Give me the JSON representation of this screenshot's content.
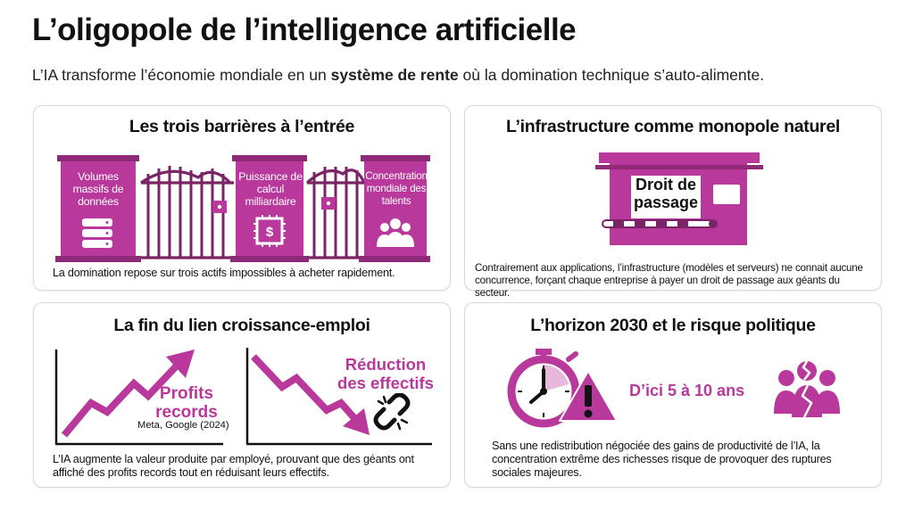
{
  "header": {
    "title": "L’oligopole de l’intelligence artificielle",
    "subtitle_pre": "L’IA transforme l’économie mondiale en un ",
    "subtitle_bold": "système de rente",
    "subtitle_post": " où la domination technique s’auto-alimente."
  },
  "cards": {
    "barriers": {
      "title": "Les trois barrières à l’entrée",
      "pillar1": "Volumes massifs de données",
      "pillar2": "Puissance de calcul milliardaire",
      "pillar3": "Concentration mondiale des talents",
      "caption": "La domination repose sur trois actifs impossibles à acheter rapidement."
    },
    "infra": {
      "title": "L’infrastructure comme monopole naturel",
      "toll_label": "Droit de passage",
      "caption": "Contrairement aux applications, l’infrastructure (modèles et serveurs) ne connait aucune concurrence, forçant chaque entreprise à payer un droit de passage aux géants du secteur."
    },
    "growth": {
      "title": "La fin du lien croissance-emploi",
      "profits_label": "Profits records",
      "profits_source": "Meta, Google (2024)",
      "reduction_label": "Réduction des effectifs",
      "caption": "L’IA augmente la valeur produite par employé, prouvant que des géants ont affiché des profits records tout en réduisant leurs effectifs."
    },
    "horizon": {
      "title": "L’horizon 2030 et le risque politique",
      "timeframe": "D’ici 5 à 10 ans",
      "caption": "Sans une redistribution négociée des gains de productivité de l’IA, la concentration extrême des richesses risque de provoquer des ruptures sociales majeures."
    }
  },
  "colors": {
    "accent": "#b8399b",
    "accent_dark": "#8e2a77",
    "text": "#111111",
    "border": "#d9d9d9"
  },
  "icons": [
    "database-icon",
    "chip-dollar-icon",
    "people-icon",
    "lock-icon",
    "toll-barrier-icon",
    "trend-up-icon",
    "trend-down-icon",
    "broken-link-icon",
    "clock-icon",
    "warning-icon",
    "crowd-icon"
  ]
}
